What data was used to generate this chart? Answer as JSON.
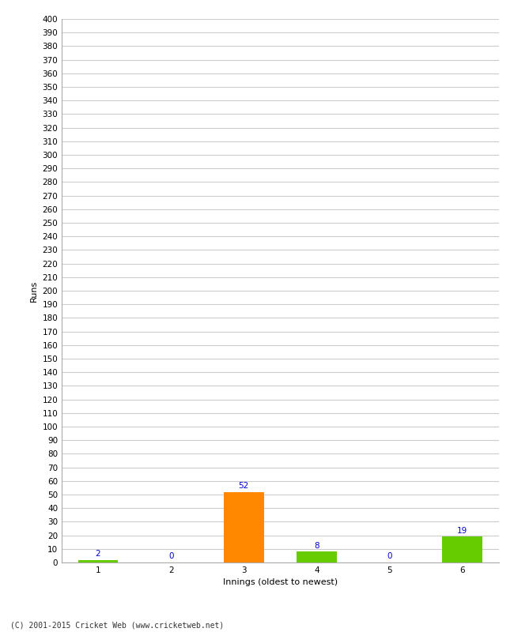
{
  "categories": [
    1,
    2,
    3,
    4,
    5,
    6
  ],
  "values": [
    2,
    0,
    52,
    8,
    0,
    19
  ],
  "bar_colors": [
    "#66cc00",
    "#66cc00",
    "#ff8800",
    "#66cc00",
    "#66cc00",
    "#66cc00"
  ],
  "xlabel": "Innings (oldest to newest)",
  "ylabel": "Runs",
  "ylim": [
    0,
    400
  ],
  "ytick_step": 10,
  "background_color": "#ffffff",
  "grid_color": "#cccccc",
  "label_color": "#0000cc",
  "annotation_fontsize": 7.5,
  "axis_label_fontsize": 8,
  "tick_fontsize": 7.5,
  "footer": "(C) 2001-2015 Cricket Web (www.cricketweb.net)",
  "footer_fontsize": 7
}
